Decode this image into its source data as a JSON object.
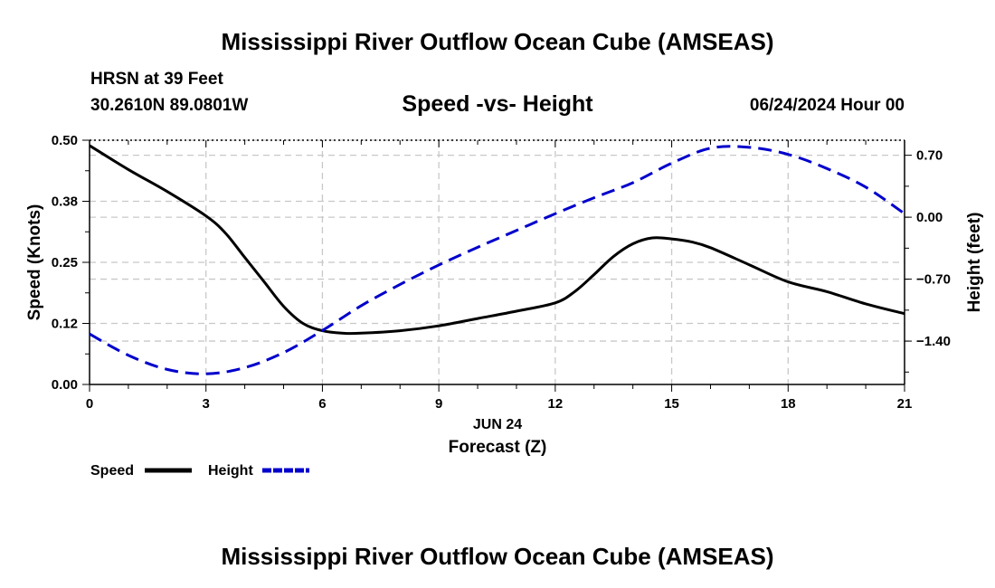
{
  "header": {
    "title": "Mississippi River Outflow Ocean Cube (AMSEAS)",
    "station": "HRSN at 39 Feet",
    "coords": "30.2610N  89.0801W",
    "chart_title": "Speed -vs- Height",
    "datetime": "06/24/2024 Hour 00"
  },
  "footer": {
    "title": "Mississippi River Outflow Ocean Cube (AMSEAS)"
  },
  "colors": {
    "speed": "#000000",
    "height": "#0000cc",
    "grid": "#c8c8c8"
  },
  "chart_data": {
    "type": "line",
    "title": "Speed -vs- Height",
    "xlabel": "Forecast (Z)",
    "xdate_label": "JUN 24",
    "ylabel": "Speed (Knots)",
    "y2label": "Height (feet)",
    "xlim": [
      0,
      21
    ],
    "ylim": [
      0,
      0.5
    ],
    "y2lim": [
      -1.89,
      0.87
    ],
    "x_ticks": [
      0,
      3,
      6,
      9,
      12,
      15,
      18,
      21
    ],
    "x_tick_labels": [
      "0",
      "3",
      "6",
      "9",
      "12",
      "15",
      "18",
      "21"
    ],
    "y_ticks": [
      0,
      0.125,
      0.25,
      0.375,
      0.5
    ],
    "y_tick_labels": [
      "0.00",
      "0.12",
      "0.25",
      "0.38",
      "0.50"
    ],
    "y2_ticks": [
      -1.4,
      -0.7,
      0,
      0.7
    ],
    "y2_tick_labels": [
      "−1.40",
      "−0.70",
      "0.00",
      "0.70"
    ],
    "grid": true,
    "legend": [
      {
        "label": "Speed",
        "style": "solid"
      },
      {
        "label": "Height",
        "style": "dashed"
      }
    ],
    "series": [
      {
        "name": "Speed",
        "axis": "left",
        "style": "solid",
        "x": [
          0,
          1,
          2,
          3,
          3.5,
          4,
          4.5,
          5,
          5.5,
          6,
          6.5,
          7,
          8,
          9,
          10,
          11,
          12,
          12.5,
          13,
          13.5,
          14,
          14.5,
          15,
          15.5,
          16,
          17,
          18,
          19,
          20,
          21
        ],
        "values": [
          0.489,
          0.44,
          0.395,
          0.345,
          0.31,
          0.26,
          0.21,
          0.16,
          0.125,
          0.11,
          0.105,
          0.105,
          0.11,
          0.12,
          0.135,
          0.15,
          0.167,
          0.19,
          0.225,
          0.262,
          0.288,
          0.3,
          0.298,
          0.292,
          0.28,
          0.245,
          0.21,
          0.19,
          0.165,
          0.145
        ]
      },
      {
        "name": "Height",
        "axis": "right",
        "style": "dashed",
        "x": [
          0,
          1,
          2,
          3,
          4,
          5,
          6,
          7,
          8,
          9,
          10,
          11,
          12,
          13,
          14,
          15,
          16,
          17,
          18,
          19,
          20,
          21
        ],
        "values": [
          -1.32,
          -1.56,
          -1.72,
          -1.77,
          -1.7,
          -1.53,
          -1.28,
          -1.0,
          -0.76,
          -0.54,
          -0.34,
          -0.15,
          0.04,
          0.22,
          0.39,
          0.61,
          0.78,
          0.79,
          0.71,
          0.55,
          0.34,
          0.04
        ]
      }
    ]
  }
}
